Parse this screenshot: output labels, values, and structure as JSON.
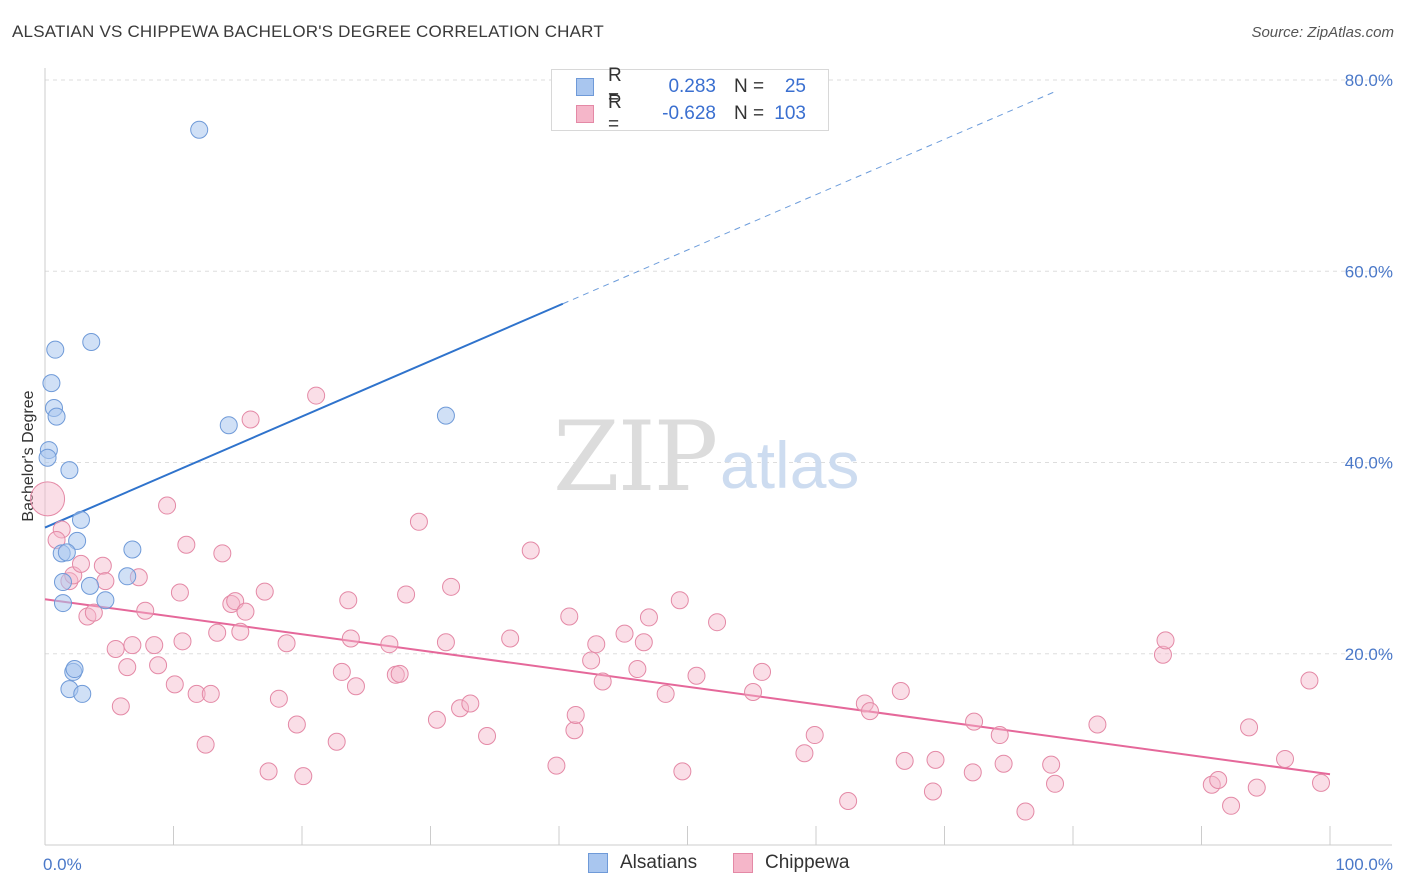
{
  "title": "ALSATIAN VS CHIPPEWA BACHELOR'S DEGREE CORRELATION CHART",
  "source": "Source: ZipAtlas.com",
  "watermark": {
    "part1": "ZIP",
    "part2": "atlas"
  },
  "legend": {
    "rows": [
      {
        "r_label": "R =",
        "r_value": "0.283",
        "n_label": "N =",
        "n_value": "25"
      },
      {
        "r_label": "R =",
        "r_value": "-0.628",
        "n_label": "N =",
        "n_value": "103"
      }
    ]
  },
  "bottom_legend": {
    "series1": "Alsatians",
    "series2": "Chippewa"
  },
  "colors": {
    "alsatians_fill": "#a9c6ef",
    "alsatians_stroke": "#6f9ad8",
    "alsatians_line": "#2f73cc",
    "chippewa_fill": "#f5b6c9",
    "chippewa_stroke": "#e489a6",
    "chippewa_line": "#e5689a",
    "tick_text": "#4a78c8"
  },
  "chart_data": {
    "type": "scatter",
    "title": "ALSATIAN VS CHIPPEWA BACHELOR'S DEGREE CORRELATION CHART",
    "xlabel": "",
    "ylabel": "Bachelor's Degree",
    "xlim": [
      0,
      100
    ],
    "ylim": [
      0,
      80
    ],
    "x_tick_labels": [
      "0.0%",
      "100.0%"
    ],
    "y_ticks": [
      20,
      40,
      60,
      80
    ],
    "y_tick_labels": [
      "20.0%",
      "40.0%",
      "60.0%",
      "80.0%"
    ],
    "grid": true,
    "series": [
      {
        "name": "Alsatians",
        "r": 0.283,
        "n": 25,
        "trend": {
          "x0": 0,
          "y0": 33.2,
          "x1": 40.3,
          "y1": 56.6,
          "dashed_to_x": 78.8,
          "dashed_to_y": 78.9
        },
        "points": [
          [
            12.0,
            74.8
          ],
          [
            0.8,
            51.8
          ],
          [
            3.6,
            52.6
          ],
          [
            0.5,
            48.3
          ],
          [
            0.7,
            45.7
          ],
          [
            0.9,
            44.8
          ],
          [
            14.3,
            43.9
          ],
          [
            31.2,
            44.9
          ],
          [
            0.3,
            41.3
          ],
          [
            0.2,
            40.5
          ],
          [
            1.9,
            39.2
          ],
          [
            2.8,
            34.0
          ],
          [
            1.3,
            30.5
          ],
          [
            2.5,
            31.8
          ],
          [
            1.7,
            30.6
          ],
          [
            6.8,
            30.9
          ],
          [
            1.4,
            27.5
          ],
          [
            3.5,
            27.1
          ],
          [
            6.4,
            28.1
          ],
          [
            1.4,
            25.3
          ],
          [
            4.7,
            25.6
          ],
          [
            2.2,
            18.1
          ],
          [
            2.3,
            18.4
          ],
          [
            1.9,
            16.3
          ],
          [
            2.9,
            15.8
          ]
        ]
      },
      {
        "name": "Chippewa",
        "r": -0.628,
        "n": 103,
        "trend": {
          "x0": 0,
          "y0": 25.7,
          "x1": 100,
          "y1": 7.4
        },
        "points": [
          [
            0.2,
            36.2
          ],
          [
            1.3,
            33.0
          ],
          [
            0.9,
            31.9
          ],
          [
            1.9,
            27.6
          ],
          [
            2.2,
            28.2
          ],
          [
            2.8,
            29.4
          ],
          [
            3.3,
            23.9
          ],
          [
            3.8,
            24.3
          ],
          [
            4.5,
            29.2
          ],
          [
            4.7,
            27.6
          ],
          [
            5.5,
            20.5
          ],
          [
            5.9,
            14.5
          ],
          [
            6.4,
            18.6
          ],
          [
            6.8,
            20.9
          ],
          [
            7.3,
            28.0
          ],
          [
            7.8,
            24.5
          ],
          [
            8.5,
            20.9
          ],
          [
            8.8,
            18.8
          ],
          [
            9.5,
            35.5
          ],
          [
            10.1,
            16.8
          ],
          [
            10.5,
            26.4
          ],
          [
            10.7,
            21.3
          ],
          [
            11.0,
            31.4
          ],
          [
            11.8,
            15.8
          ],
          [
            12.5,
            10.5
          ],
          [
            12.9,
            15.8
          ],
          [
            13.4,
            22.2
          ],
          [
            13.8,
            30.5
          ],
          [
            14.5,
            25.2
          ],
          [
            14.8,
            25.5
          ],
          [
            15.2,
            22.3
          ],
          [
            15.6,
            24.4
          ],
          [
            16.0,
            44.5
          ],
          [
            17.1,
            26.5
          ],
          [
            17.4,
            7.7
          ],
          [
            18.2,
            15.3
          ],
          [
            18.8,
            21.1
          ],
          [
            19.6,
            12.6
          ],
          [
            20.1,
            7.2
          ],
          [
            21.1,
            47.0
          ],
          [
            22.7,
            10.8
          ],
          [
            23.1,
            18.1
          ],
          [
            23.6,
            25.6
          ],
          [
            23.8,
            21.6
          ],
          [
            24.2,
            16.6
          ],
          [
            26.8,
            21.0
          ],
          [
            27.3,
            17.8
          ],
          [
            27.6,
            17.9
          ],
          [
            28.1,
            26.2
          ],
          [
            29.1,
            33.8
          ],
          [
            30.5,
            13.1
          ],
          [
            31.2,
            21.2
          ],
          [
            31.6,
            27.0
          ],
          [
            32.3,
            14.3
          ],
          [
            33.1,
            14.8
          ],
          [
            34.4,
            11.4
          ],
          [
            36.2,
            21.6
          ],
          [
            37.8,
            30.8
          ],
          [
            39.8,
            8.3
          ],
          [
            40.8,
            23.9
          ],
          [
            41.2,
            12.0
          ],
          [
            41.3,
            13.6
          ],
          [
            42.5,
            19.3
          ],
          [
            42.9,
            21.0
          ],
          [
            43.4,
            17.1
          ],
          [
            45.1,
            22.1
          ],
          [
            46.1,
            18.4
          ],
          [
            46.6,
            21.2
          ],
          [
            47.0,
            23.8
          ],
          [
            48.3,
            15.8
          ],
          [
            49.4,
            25.6
          ],
          [
            49.6,
            7.7
          ],
          [
            50.7,
            17.7
          ],
          [
            52.3,
            23.3
          ],
          [
            55.1,
            16.0
          ],
          [
            55.8,
            18.1
          ],
          [
            59.1,
            9.6
          ],
          [
            59.9,
            11.5
          ],
          [
            62.5,
            4.6
          ],
          [
            63.8,
            14.8
          ],
          [
            64.2,
            14.0
          ],
          [
            66.6,
            16.1
          ],
          [
            66.9,
            8.8
          ],
          [
            69.1,
            5.6
          ],
          [
            69.3,
            8.9
          ],
          [
            72.2,
            7.6
          ],
          [
            72.3,
            12.9
          ],
          [
            74.3,
            11.5
          ],
          [
            74.6,
            8.5
          ],
          [
            76.3,
            3.5
          ],
          [
            78.3,
            8.4
          ],
          [
            78.6,
            6.4
          ],
          [
            81.9,
            12.6
          ],
          [
            87.0,
            19.9
          ],
          [
            87.2,
            21.4
          ],
          [
            90.8,
            6.3
          ],
          [
            91.3,
            6.8
          ],
          [
            92.3,
            4.1
          ],
          [
            93.7,
            12.3
          ],
          [
            94.3,
            6.0
          ],
          [
            96.5,
            9.0
          ],
          [
            98.4,
            17.2
          ],
          [
            99.3,
            6.5
          ]
        ]
      }
    ]
  }
}
